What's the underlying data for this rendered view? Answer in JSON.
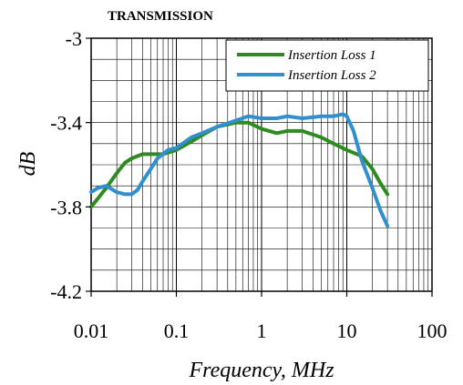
{
  "chart_data": {
    "type": "line",
    "title": "TRANSMISSION",
    "xlabel": "Frequency, MHz",
    "ylabel": "dB",
    "x_scale": "log",
    "xlim": [
      0.01,
      100
    ],
    "ylim": [
      -4.2,
      -3.0
    ],
    "x_ticks": [
      0.01,
      0.1,
      1,
      10,
      100
    ],
    "x_tick_labels": [
      "0.01",
      "0.1",
      "1",
      "10",
      "100"
    ],
    "y_ticks": [
      -3.0,
      -3.4,
      -3.8,
      -4.2
    ],
    "y_tick_labels": [
      "-3",
      "-3.4",
      "-3.8",
      "-4.2"
    ],
    "grid": true,
    "legend_position": "top-right",
    "series": [
      {
        "name": "Insertion Loss 1",
        "color": "#2E8B1F",
        "x": [
          0.01,
          0.012,
          0.015,
          0.02,
          0.025,
          0.03,
          0.04,
          0.05,
          0.07,
          0.1,
          0.15,
          0.2,
          0.3,
          0.5,
          0.7,
          1,
          1.5,
          2,
          3,
          5,
          7,
          10,
          15,
          20,
          25,
          30
        ],
        "y": [
          -3.8,
          -3.76,
          -3.71,
          -3.64,
          -3.59,
          -3.57,
          -3.55,
          -3.55,
          -3.55,
          -3.53,
          -3.49,
          -3.46,
          -3.42,
          -3.4,
          -3.4,
          -3.43,
          -3.45,
          -3.44,
          -3.44,
          -3.47,
          -3.5,
          -3.53,
          -3.56,
          -3.62,
          -3.69,
          -3.74
        ]
      },
      {
        "name": "Insertion Loss 2",
        "color": "#2F8FCF",
        "x": [
          0.01,
          0.012,
          0.015,
          0.02,
          0.025,
          0.03,
          0.035,
          0.04,
          0.05,
          0.06,
          0.08,
          0.1,
          0.15,
          0.2,
          0.3,
          0.5,
          0.7,
          1,
          1.5,
          2,
          3,
          5,
          7,
          9,
          10,
          12,
          15,
          20,
          25,
          30
        ],
        "y": [
          -3.73,
          -3.71,
          -3.7,
          -3.73,
          -3.74,
          -3.74,
          -3.72,
          -3.68,
          -3.62,
          -3.57,
          -3.53,
          -3.52,
          -3.47,
          -3.45,
          -3.42,
          -3.39,
          -3.37,
          -3.38,
          -3.38,
          -3.37,
          -3.38,
          -3.37,
          -3.37,
          -3.36,
          -3.37,
          -3.44,
          -3.58,
          -3.71,
          -3.82,
          -3.89
        ]
      }
    ]
  }
}
